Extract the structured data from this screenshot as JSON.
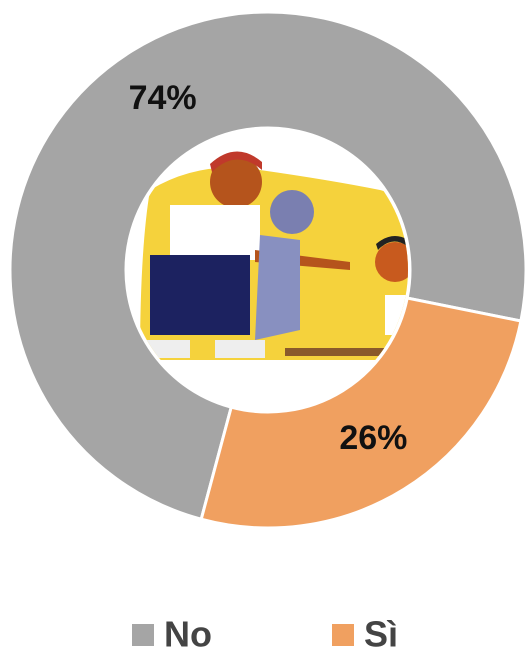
{
  "chart_data": {
    "type": "donut",
    "categories": [
      "No",
      "Sì"
    ],
    "values": [
      74,
      26
    ],
    "value_labels": [
      "74%",
      "26%"
    ],
    "colors": [
      "#a5a5a5",
      "#f0a060"
    ]
  }
}
